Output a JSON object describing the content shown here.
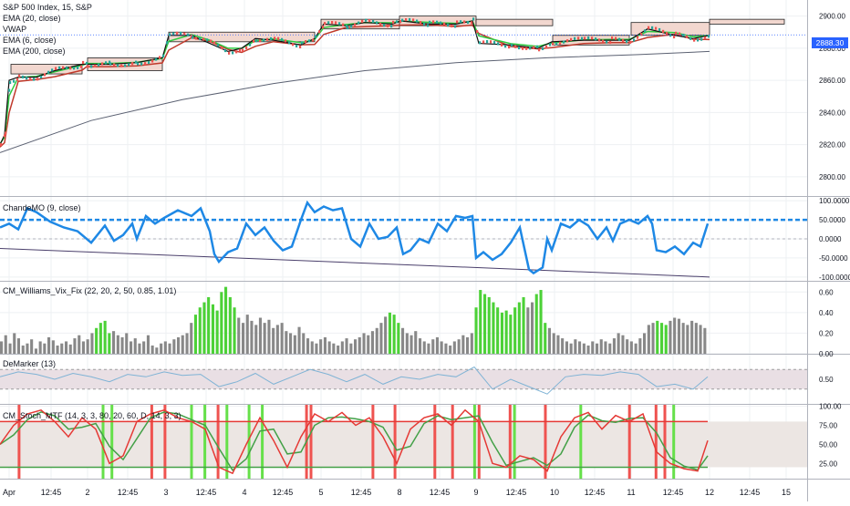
{
  "symbol_line": "S&P 500 Index, 15, S&P",
  "price_panel": {
    "indicators": [
      "EMA (20, close)",
      "VWAP",
      "EMA (6, close)",
      "EMA (200, close)"
    ],
    "current_price": "2888.30",
    "y_ticks": [
      {
        "v": 2900,
        "label": "2900.00"
      },
      {
        "v": 2880,
        "label": "2880.00"
      },
      {
        "v": 2860,
        "label": "2860.00"
      },
      {
        "v": 2840,
        "label": "2840.00"
      },
      {
        "v": 2820,
        "label": "2820.00"
      },
      {
        "v": 2800,
        "label": "2800.00"
      }
    ],
    "ylim": [
      2788,
      2910
    ]
  },
  "chande": {
    "title": "ChandeMO (9, close)",
    "y_ticks": [
      {
        "v": 100,
        "label": "100.0000"
      },
      {
        "v": 50,
        "label": "50.0000"
      },
      {
        "v": 0,
        "label": "0.0000"
      },
      {
        "v": -50,
        "label": "-50.0000"
      },
      {
        "v": -100,
        "label": "-100.0000"
      }
    ],
    "ylim": [
      -110,
      110
    ],
    "level": 50,
    "trend_line": [
      [
        0,
        -25
      ],
      [
        778,
        -100
      ]
    ]
  },
  "vix": {
    "title": "CM_Williams_Vix_Fix (22, 20, 2, 50, 0.85, 1.01)",
    "y_ticks": [
      {
        "v": 0.6,
        "label": "0.60"
      },
      {
        "v": 0.4,
        "label": "0.40"
      },
      {
        "v": 0.2,
        "label": "0.20"
      },
      {
        "v": 0.0,
        "label": "0.00"
      }
    ],
    "ylim": [
      0,
      0.7
    ],
    "green_bars": [
      22,
      23,
      24,
      25,
      45,
      46,
      47,
      48,
      49,
      50,
      51,
      52,
      53,
      54,
      90,
      91,
      92,
      110,
      111,
      112,
      113,
      114,
      115,
      116,
      117,
      118,
      119,
      120,
      121,
      124,
      125,
      126,
      152,
      153,
      154
    ],
    "colors": {
      "gray": "#888888",
      "green": "#4cd137"
    }
  },
  "demarker": {
    "title": "DeMarker (13)",
    "y_ticks": [
      {
        "v": 0.5,
        "label": "0.50"
      }
    ],
    "ylim": [
      0,
      1
    ],
    "band": [
      0.3,
      0.7
    ]
  },
  "stoch": {
    "title": "CM_Stoch_MTF (14, 3, 3, 80, 20, 60, D, 14, 3, 3)",
    "y_ticks": [
      {
        "v": 100,
        "label": "100.00"
      },
      {
        "v": 75,
        "label": "75.00"
      },
      {
        "v": 50,
        "label": "50.00"
      },
      {
        "v": 25,
        "label": "25.00"
      }
    ],
    "ylim": [
      5,
      102
    ],
    "upper": 80,
    "lower": 20,
    "red_signals": [
      4,
      34,
      37,
      49,
      69,
      70,
      84,
      89,
      98,
      102,
      108,
      115,
      123,
      142,
      148,
      150
    ],
    "green_signals": [
      23,
      25,
      43,
      46,
      51,
      56,
      59,
      107,
      116,
      131,
      152
    ],
    "colors": {
      "k": "#e53935",
      "d": "#43a047",
      "red_bar": "#ef5350",
      "green_bar": "#66e04a"
    }
  },
  "x_axis": {
    "labels": [
      {
        "x": 10,
        "label": "Apr"
      },
      {
        "x": 56,
        "label": "12:45"
      },
      {
        "x": 96,
        "label": "2"
      },
      {
        "x": 140,
        "label": "12:45"
      },
      {
        "x": 182,
        "label": "3"
      },
      {
        "x": 226,
        "label": "12:45"
      },
      {
        "x": 268,
        "label": "4"
      },
      {
        "x": 310,
        "label": "12:45"
      },
      {
        "x": 352,
        "label": "5"
      },
      {
        "x": 396,
        "label": "12:45"
      },
      {
        "x": 438,
        "label": "8"
      },
      {
        "x": 482,
        "label": "12:45"
      },
      {
        "x": 522,
        "label": "9"
      },
      {
        "x": 566,
        "label": "12:45"
      },
      {
        "x": 608,
        "label": "10"
      },
      {
        "x": 652,
        "label": "12:45"
      },
      {
        "x": 692,
        "label": "11"
      },
      {
        "x": 738,
        "label": "12:45"
      },
      {
        "x": 778,
        "label": "12"
      },
      {
        "x": 822,
        "label": "12:45"
      },
      {
        "x": 862,
        "label": "15"
      }
    ]
  },
  "chart_data": [
    {
      "type": "line",
      "title": "S&P 500 Index, 15, S&P",
      "series": [
        {
          "name": "price",
          "x": [
            0,
            5,
            10,
            20,
            40,
            60,
            90,
            95,
            120,
            150,
            178,
            185,
            210,
            230,
            250,
            265,
            280,
            300,
            330,
            345,
            355,
            380,
            400,
            430,
            440,
            470,
            500,
            518,
            525,
            560,
            590,
            605,
            640,
            670,
            690,
            710,
            740,
            760,
            778
          ],
          "y": [
            2820,
            2826,
            2860,
            2862,
            2862,
            2866,
            2870,
            2870,
            2870,
            2871,
            2874,
            2888,
            2888,
            2883,
            2878,
            2880,
            2886,
            2885,
            2882,
            2886,
            2895,
            2894,
            2896,
            2895,
            2897,
            2895,
            2895,
            2897,
            2883,
            2882,
            2880,
            2884,
            2885,
            2885,
            2885,
            2892,
            2888,
            2886,
            2888
          ]
        },
        {
          "name": "EMA (200, close)",
          "x": [
            0,
            100,
            200,
            300,
            400,
            500,
            600,
            700,
            778
          ],
          "y": [
            2815,
            2835,
            2848,
            2858,
            2866,
            2871,
            2874,
            2876,
            2878
          ]
        }
      ],
      "ylim": [
        2788,
        2910
      ]
    },
    {
      "type": "line",
      "title": "ChandeMO (9, close)",
      "x": [
        0,
        10,
        20,
        30,
        40,
        55,
        70,
        85,
        100,
        115,
        125,
        135,
        145,
        150,
        160,
        170,
        180,
        195,
        210,
        220,
        230,
        235,
        240,
        250,
        260,
        270,
        280,
        290,
        300,
        310,
        320,
        330,
        337,
        345,
        355,
        365,
        375,
        385,
        395,
        405,
        415,
        425,
        435,
        442,
        450,
        460,
        470,
        480,
        490,
        500,
        510,
        518,
        522,
        530,
        540,
        550,
        560,
        570,
        580,
        585,
        595,
        600,
        605,
        615,
        625,
        635,
        645,
        655,
        665,
        672,
        680,
        690,
        700,
        710,
        715,
        720,
        730,
        740,
        750,
        760,
        768,
        776
      ],
      "y": [
        30,
        40,
        25,
        80,
        70,
        45,
        30,
        20,
        -10,
        35,
        -5,
        10,
        40,
        0,
        60,
        40,
        55,
        75,
        60,
        80,
        20,
        -40,
        -60,
        -35,
        -25,
        40,
        10,
        30,
        -5,
        -30,
        -20,
        50,
        95,
        70,
        85,
        75,
        80,
        0,
        -20,
        40,
        0,
        5,
        30,
        -40,
        -30,
        0,
        -10,
        40,
        20,
        60,
        55,
        60,
        -50,
        -35,
        -55,
        -40,
        -10,
        30,
        -80,
        -90,
        -75,
        0,
        -30,
        40,
        30,
        50,
        35,
        0,
        30,
        -5,
        40,
        50,
        40,
        60,
        40,
        -30,
        -35,
        -20,
        -40,
        -10,
        -20,
        40
      ]
    },
    {
      "type": "bar",
      "title": "CM_Williams_Vix_Fix (22, 20, 2, 50, 0.85, 1.01)",
      "values": [
        0.12,
        0.18,
        0.1,
        0.2,
        0.15,
        0.08,
        0.1,
        0.14,
        0.05,
        0.12,
        0.1,
        0.16,
        0.13,
        0.08,
        0.1,
        0.12,
        0.09,
        0.15,
        0.18,
        0.12,
        0.14,
        0.2,
        0.25,
        0.3,
        0.32,
        0.2,
        0.22,
        0.18,
        0.16,
        0.2,
        0.12,
        0.15,
        0.1,
        0.12,
        0.18,
        0.08,
        0.06,
        0.1,
        0.12,
        0.1,
        0.14,
        0.16,
        0.18,
        0.2,
        0.3,
        0.38,
        0.45,
        0.5,
        0.55,
        0.48,
        0.42,
        0.6,
        0.65,
        0.55,
        0.45,
        0.35,
        0.3,
        0.38,
        0.32,
        0.28,
        0.35,
        0.3,
        0.33,
        0.25,
        0.28,
        0.3,
        0.22,
        0.2,
        0.18,
        0.26,
        0.2,
        0.15,
        0.12,
        0.1,
        0.14,
        0.16,
        0.12,
        0.1,
        0.08,
        0.12,
        0.15,
        0.1,
        0.14,
        0.16,
        0.2,
        0.18,
        0.22,
        0.25,
        0.3,
        0.36,
        0.4,
        0.38,
        0.3,
        0.25,
        0.2,
        0.18,
        0.22,
        0.15,
        0.12,
        0.1,
        0.14,
        0.16,
        0.12,
        0.1,
        0.08,
        0.12,
        0.14,
        0.18,
        0.16,
        0.2,
        0.45,
        0.62,
        0.58,
        0.55,
        0.5,
        0.45,
        0.4,
        0.42,
        0.38,
        0.45,
        0.5,
        0.55,
        0.45,
        0.5,
        0.58,
        0.62,
        0.3,
        0.25,
        0.2,
        0.18,
        0.15,
        0.12,
        0.1,
        0.14,
        0.12,
        0.1,
        0.08,
        0.12,
        0.1,
        0.14,
        0.12,
        0.1,
        0.15,
        0.2,
        0.18,
        0.14,
        0.12,
        0.1,
        0.15,
        0.2,
        0.28,
        0.3,
        0.32,
        0.3,
        0.28,
        0.32,
        0.35,
        0.34,
        0.3,
        0.28,
        0.32,
        0.3,
        0.28,
        0.25
      ],
      "ylim": [
        0,
        0.7
      ]
    },
    {
      "type": "line",
      "title": "DeMarker (13)",
      "x": [
        0,
        20,
        40,
        60,
        80,
        100,
        120,
        140,
        160,
        180,
        200,
        220,
        240,
        260,
        280,
        300,
        320,
        340,
        360,
        380,
        400,
        420,
        440,
        460,
        480,
        500,
        520,
        540,
        560,
        580,
        600,
        620,
        640,
        660,
        680,
        700,
        720,
        740,
        760,
        776
      ],
      "y": [
        0.55,
        0.65,
        0.6,
        0.5,
        0.62,
        0.55,
        0.45,
        0.6,
        0.55,
        0.65,
        0.58,
        0.6,
        0.35,
        0.45,
        0.62,
        0.4,
        0.55,
        0.7,
        0.6,
        0.45,
        0.6,
        0.4,
        0.55,
        0.5,
        0.6,
        0.55,
        0.75,
        0.3,
        0.5,
        0.35,
        0.2,
        0.55,
        0.6,
        0.58,
        0.65,
        0.6,
        0.35,
        0.4,
        0.3,
        0.55
      ],
      "ylim": [
        0,
        1
      ]
    },
    {
      "type": "line",
      "title": "CM_Stoch_MTF (14, 3, 3, 80, 20, 60, D, 14, 3, 3)",
      "x": [
        0,
        15,
        30,
        45,
        60,
        75,
        90,
        105,
        120,
        135,
        150,
        165,
        180,
        195,
        210,
        225,
        240,
        255,
        270,
        285,
        300,
        315,
        330,
        345,
        360,
        375,
        390,
        405,
        420,
        435,
        450,
        465,
        480,
        495,
        510,
        525,
        540,
        555,
        570,
        585,
        600,
        615,
        630,
        645,
        660,
        675,
        690,
        705,
        720,
        735,
        750,
        765,
        776
      ],
      "y": [
        50,
        75,
        90,
        95,
        80,
        60,
        85,
        70,
        25,
        35,
        80,
        90,
        95,
        85,
        80,
        70,
        20,
        12,
        50,
        85,
        55,
        20,
        60,
        90,
        80,
        92,
        75,
        85,
        60,
        25,
        70,
        85,
        90,
        75,
        95,
        80,
        25,
        20,
        35,
        30,
        15,
        60,
        85,
        92,
        70,
        88,
        80,
        90,
        40,
        25,
        18,
        15,
        55
      ],
      "ylim": [
        5,
        102
      ]
    }
  ]
}
